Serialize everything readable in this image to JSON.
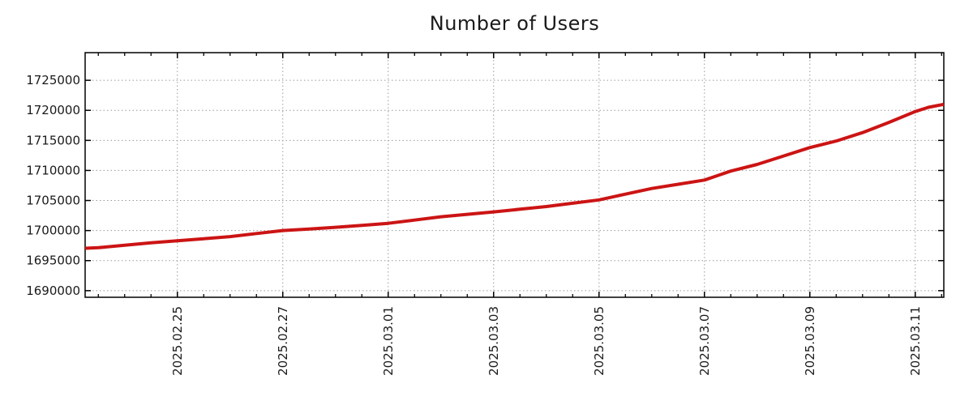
{
  "chart_data": {
    "type": "line",
    "title": "Number of Users",
    "xlabel": "",
    "ylabel": "",
    "grid": "dotted",
    "legend": "none",
    "xlim": [
      "2025-02-23T06:00",
      "2025-03-11T13:00"
    ],
    "ylim": [
      1688900,
      1729600
    ],
    "minor_tick_hours": 12,
    "x_ticks": [
      {
        "label": "2025.02.25",
        "date": "2025-02-25T00:00"
      },
      {
        "label": "2025.02.27",
        "date": "2025-02-27T00:00"
      },
      {
        "label": "2025.03.01",
        "date": "2025-03-01T00:00"
      },
      {
        "label": "2025.03.03",
        "date": "2025-03-03T00:00"
      },
      {
        "label": "2025.03.05",
        "date": "2025-03-05T00:00"
      },
      {
        "label": "2025.03.07",
        "date": "2025-03-07T00:00"
      },
      {
        "label": "2025.03.09",
        "date": "2025-03-09T00:00"
      },
      {
        "label": "2025.03.11",
        "date": "2025-03-11T00:00"
      }
    ],
    "y_ticks": [
      {
        "label": "1690000",
        "value": 1690000
      },
      {
        "label": "1695000",
        "value": 1695000
      },
      {
        "label": "1700000",
        "value": 1700000
      },
      {
        "label": "1705000",
        "value": 1705000
      },
      {
        "label": "1710000",
        "value": 1710000
      },
      {
        "label": "1715000",
        "value": 1715000
      },
      {
        "label": "1720000",
        "value": 1720000
      },
      {
        "label": "1725000",
        "value": 1725000
      }
    ],
    "series": [
      {
        "name": "Number of Users",
        "color": "#cc1414",
        "points": [
          [
            "2025-02-23T06:00",
            1697050
          ],
          [
            "2025-02-23T12:00",
            1697150
          ],
          [
            "2025-02-24T00:00",
            1697550
          ],
          [
            "2025-02-24T12:00",
            1697950
          ],
          [
            "2025-02-25T00:00",
            1698300
          ],
          [
            "2025-02-25T12:00",
            1698650
          ],
          [
            "2025-02-26T00:00",
            1699000
          ],
          [
            "2025-02-26T12:00",
            1699500
          ],
          [
            "2025-02-27T00:00",
            1700000
          ],
          [
            "2025-02-27T12:00",
            1700250
          ],
          [
            "2025-02-28T00:00",
            1700550
          ],
          [
            "2025-02-28T12:00",
            1700850
          ],
          [
            "2025-03-01T00:00",
            1701200
          ],
          [
            "2025-03-01T12:00",
            1701750
          ],
          [
            "2025-03-02T00:00",
            1702300
          ],
          [
            "2025-03-02T12:00",
            1702700
          ],
          [
            "2025-03-03T00:00",
            1703100
          ],
          [
            "2025-03-03T12:00",
            1703550
          ],
          [
            "2025-03-04T00:00",
            1704000
          ],
          [
            "2025-03-04T12:00",
            1704550
          ],
          [
            "2025-03-05T00:00",
            1705100
          ],
          [
            "2025-03-05T12:00",
            1706050
          ],
          [
            "2025-03-06T00:00",
            1707000
          ],
          [
            "2025-03-06T12:00",
            1707700
          ],
          [
            "2025-03-07T00:00",
            1708400
          ],
          [
            "2025-03-07T12:00",
            1709900
          ],
          [
            "2025-03-08T00:00",
            1711000
          ],
          [
            "2025-03-08T12:00",
            1712400
          ],
          [
            "2025-03-09T00:00",
            1713800
          ],
          [
            "2025-03-09T12:00",
            1714900
          ],
          [
            "2025-03-10T00:00",
            1716300
          ],
          [
            "2025-03-10T12:00",
            1718000
          ],
          [
            "2025-03-11T00:00",
            1719800
          ],
          [
            "2025-03-11T06:00",
            1720500
          ],
          [
            "2025-03-11T13:00",
            1721000
          ]
        ]
      }
    ]
  },
  "colors": {
    "line": "#cc1414",
    "grid": "#9a9a9a",
    "axis": "#000000",
    "text": "#1a1a1a",
    "background": "#ffffff"
  }
}
